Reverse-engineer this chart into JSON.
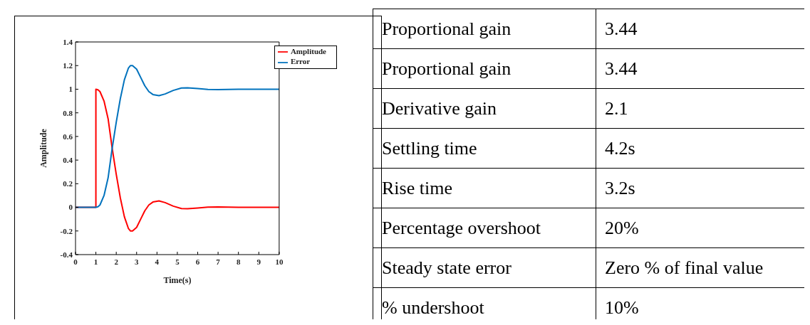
{
  "chart_data": [
    {
      "type": "line",
      "xlabel": "Time(s)",
      "ylabel": "Amplitude",
      "xlim": [
        0,
        10
      ],
      "xticks": [
        0,
        1,
        2,
        3,
        4,
        5,
        6,
        7,
        8,
        9,
        10
      ],
      "ylim": [
        -0.4,
        1.4
      ],
      "yticks": [
        -0.4,
        -0.2,
        0,
        0.2,
        0.4,
        0.6,
        0.8,
        1,
        1.2,
        1.4
      ],
      "legend": "top right",
      "grid": false,
      "series": [
        {
          "name": "Amplitude",
          "color": "#ff0000",
          "x": [
            0,
            1,
            1,
            1.1,
            1.2,
            1.4,
            1.6,
            1.8,
            2.0,
            2.2,
            2.4,
            2.6,
            2.7,
            2.8,
            3.0,
            3.2,
            3.4,
            3.6,
            3.8,
            4.1,
            4.4,
            4.8,
            5.2,
            5.5,
            6.0,
            6.5,
            7.0,
            8,
            10
          ],
          "values": [
            0,
            0,
            1,
            0.995,
            0.98,
            0.9,
            0.75,
            0.5,
            0.28,
            0.08,
            -0.08,
            -0.18,
            -0.2,
            -0.2,
            -0.17,
            -0.1,
            -0.03,
            0.02,
            0.045,
            0.055,
            0.04,
            0.01,
            -0.01,
            -0.012,
            -0.005,
            0.002,
            0.003,
            0,
            0
          ]
        },
        {
          "name": "Error",
          "color": "#0072bd",
          "x": [
            0,
            1,
            1.1,
            1.2,
            1.4,
            1.6,
            1.8,
            2.0,
            2.2,
            2.4,
            2.6,
            2.7,
            2.8,
            3.0,
            3.2,
            3.4,
            3.6,
            3.8,
            4.1,
            4.4,
            4.8,
            5.2,
            5.5,
            6.0,
            6.5,
            7.0,
            8,
            10
          ],
          "values": [
            0,
            0,
            0.005,
            0.02,
            0.1,
            0.25,
            0.5,
            0.72,
            0.92,
            1.08,
            1.18,
            1.2,
            1.2,
            1.17,
            1.1,
            1.03,
            0.98,
            0.955,
            0.945,
            0.96,
            0.99,
            1.01,
            1.012,
            1.005,
            0.998,
            0.997,
            1,
            1
          ]
        }
      ]
    },
    {
      "type": "other",
      "annotations": [
        "Proportional gain",
        "3.44",
        "Proportional gain",
        "3.44",
        "Derivative gain",
        "2.1",
        "Settling time",
        "4.2s",
        "Rise time",
        "3.2s",
        "Percentage overshoot",
        "20%",
        "Steady state error",
        "Zero % of final value",
        "% undershoot",
        "10%"
      ]
    }
  ]
}
